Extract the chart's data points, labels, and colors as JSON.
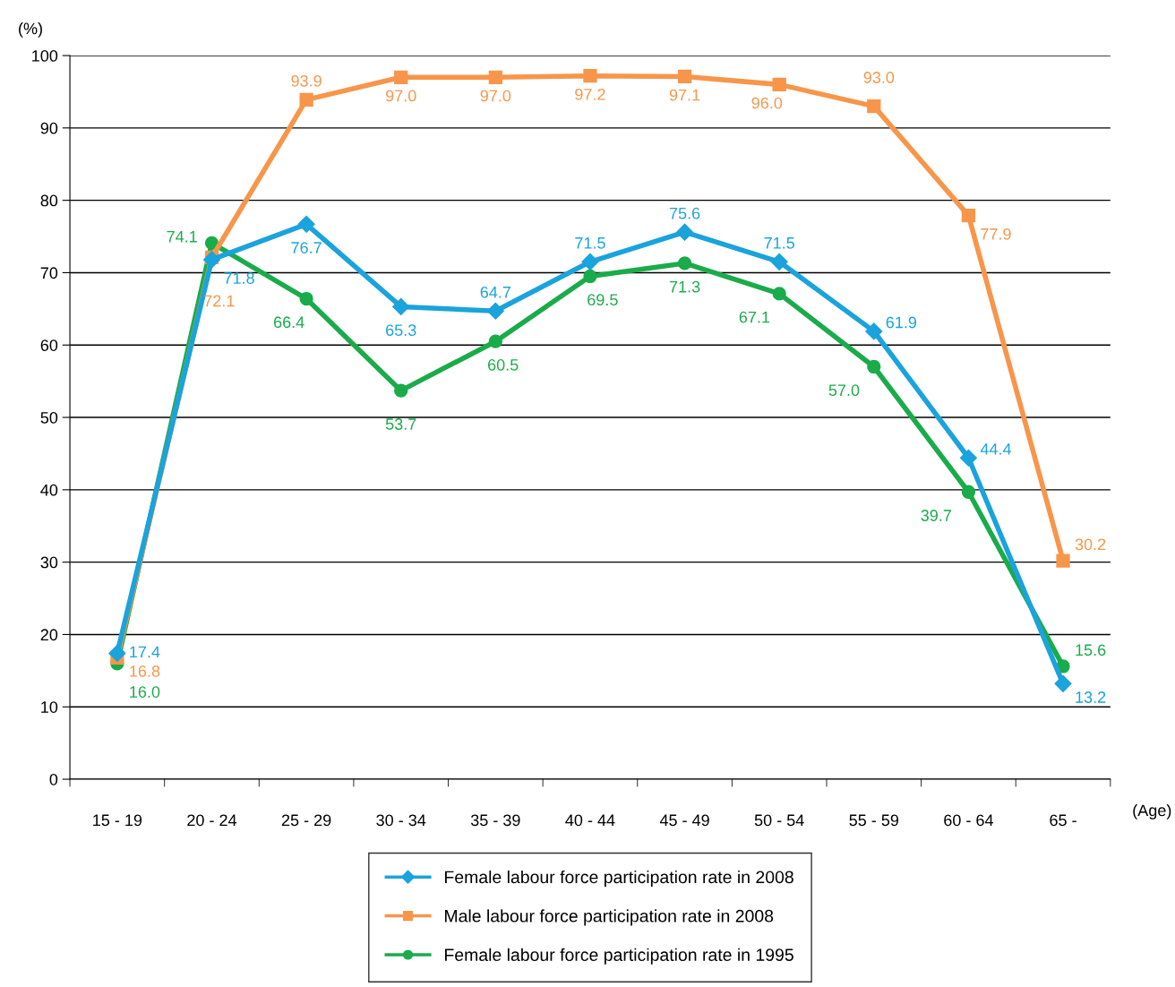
{
  "chart_data": {
    "type": "line",
    "ylabel": "(%)",
    "xlabel": "(Age)",
    "categories": [
      "15 - 19",
      "20 - 24",
      "25 - 29",
      "30 - 34",
      "35 - 39",
      "40 - 44",
      "45 - 49",
      "50 - 54",
      "55 - 59",
      "60 - 64",
      "65 -"
    ],
    "series": [
      {
        "name": "Female labour force participation rate in 2008",
        "color": "#1aa3dc",
        "marker": "diamond",
        "values": [
          17.4,
          71.8,
          76.7,
          65.3,
          64.7,
          71.5,
          75.6,
          71.5,
          61.9,
          44.4,
          13.2
        ],
        "value_labels": [
          "17.4",
          "71.8",
          "76.7",
          "65.3",
          "64.7",
          "71.5",
          "75.6",
          "71.5",
          "61.9",
          "44.4",
          "13.2"
        ]
      },
      {
        "name": "Male labour force participation rate in 2008",
        "color": "#f7964a",
        "marker": "square",
        "values": [
          16.8,
          72.1,
          93.9,
          97.0,
          97.0,
          97.2,
          97.1,
          96.0,
          93.0,
          77.9,
          30.2
        ],
        "value_labels": [
          "16.8",
          "72.1",
          "93.9",
          "97.0",
          "97.0",
          "97.2",
          "97.1",
          "96.0",
          "93.0",
          "77.9",
          "30.2"
        ]
      },
      {
        "name": "Female labour force participation rate in 1995",
        "color": "#1aab4a",
        "marker": "circle",
        "values": [
          16.0,
          74.1,
          66.4,
          53.7,
          60.5,
          69.5,
          71.3,
          67.1,
          57.0,
          39.7,
          15.6
        ],
        "value_labels": [
          "16.0",
          "74.1",
          "66.4",
          "53.7",
          "60.5",
          "69.5",
          "71.3",
          "67.1",
          "57.0",
          "39.7",
          "15.6"
        ]
      }
    ],
    "ylim": [
      0,
      100
    ],
    "yticks": [
      0,
      10,
      20,
      30,
      40,
      50,
      60,
      70,
      80,
      90,
      100
    ],
    "grid": "y",
    "legend": "bottom",
    "line_style": "solid"
  }
}
